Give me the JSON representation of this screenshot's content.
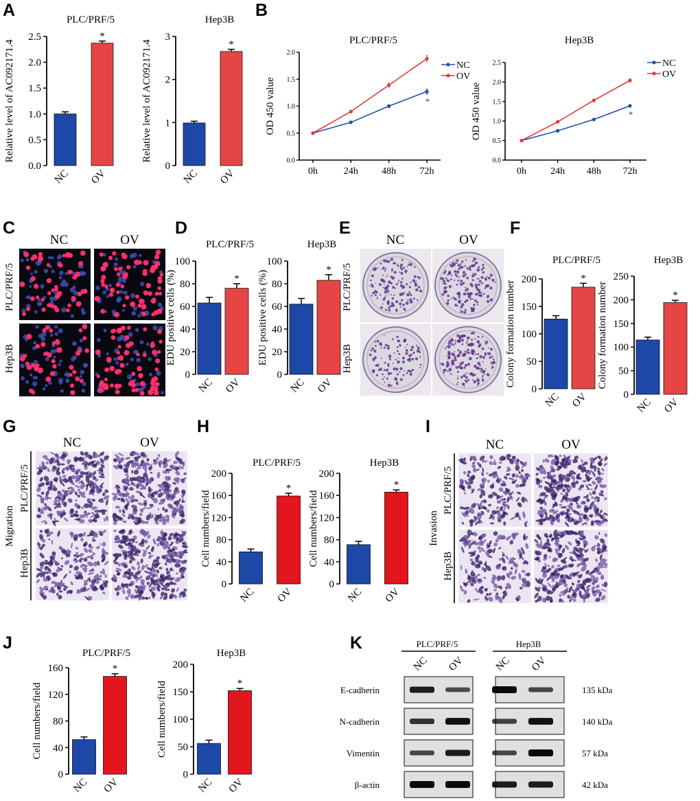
{
  "panels": [
    "A",
    "B",
    "C",
    "D",
    "E",
    "F",
    "G",
    "H",
    "I",
    "J",
    "K"
  ],
  "colors": {
    "nc": "#1d48a8",
    "ov_salmon": "#e64545",
    "ov_red": "#e3151d",
    "line_nc": "#2050a8",
    "line_ov": "#e23a3a",
    "micro_bg": "#080810",
    "transwell_bg": "#ece6f2",
    "plate_bg": "#dcd8e0"
  },
  "categories": [
    "NC",
    "OV"
  ],
  "cell_lines": [
    "PLC/PRF/5",
    "Hep3B"
  ],
  "microscopy": {
    "C": {
      "cols": [
        "NC",
        "OV"
      ],
      "rows": [
        "PLC/PRF/5",
        "Hep3B"
      ]
    },
    "E": {
      "cols": [
        "NC",
        "OV"
      ],
      "rows": [
        "PLC/PRF/5",
        "Hep3B"
      ]
    },
    "G": {
      "cols": [
        "NC",
        "OV"
      ],
      "rows": [
        "PLC/PRF/5",
        "Hep3B"
      ],
      "side": "Migration"
    },
    "I": {
      "cols": [
        "NC",
        "OV"
      ],
      "rows": [
        "PLC/PRF/5",
        "Hep3B"
      ],
      "side": "Invasion"
    }
  },
  "western": {
    "groups": [
      "PLC/PRF/5",
      "Hep3B"
    ],
    "lane_labels": [
      "NC",
      "OV",
      "NC",
      "OV"
    ],
    "rows": [
      {
        "protein": "E-cadherin",
        "size": "135 kDa",
        "intensity": [
          0.85,
          0.45,
          1.0,
          0.5
        ]
      },
      {
        "protein": "N-cadherin",
        "size": "140 kDa",
        "intensity": [
          0.65,
          0.95,
          0.55,
          0.95
        ]
      },
      {
        "protein": "Vimentin",
        "size": "57 kDa",
        "intensity": [
          0.5,
          0.85,
          0.5,
          1.0
        ]
      },
      {
        "protein": "β-actin",
        "size": "42 kDa",
        "intensity": [
          1.0,
          1.0,
          0.85,
          0.85
        ]
      }
    ]
  },
  "chart_data": [
    {
      "id": "A1",
      "type": "bar",
      "title": "PLC/PRF/5",
      "ylabel": "Relative level of AC092171.4",
      "categories": [
        "NC",
        "OV"
      ],
      "values": [
        1.0,
        2.37
      ],
      "errors": [
        0.04,
        0.04
      ],
      "ylim": [
        0,
        2.5
      ],
      "yticks": [
        "0.0",
        "0.5",
        "1.0",
        "1.5",
        "2.0",
        "2.5"
      ],
      "annotation": "*",
      "palette": [
        "nc",
        "ov_salmon"
      ]
    },
    {
      "id": "A2",
      "type": "bar",
      "title": "Hep3B",
      "ylabel": "Relative level of AC092171.4",
      "categories": [
        "NC",
        "OV"
      ],
      "values": [
        0.99,
        2.65
      ],
      "errors": [
        0.04,
        0.05
      ],
      "ylim": [
        0,
        3
      ],
      "yticks": [
        "0",
        "1",
        "2",
        "3"
      ],
      "annotation": "*",
      "palette": [
        "nc",
        "ov_salmon"
      ]
    },
    {
      "id": "B1",
      "type": "line",
      "title": "PLC/PRF/5",
      "ylabel": "OD 450 value",
      "x": [
        "0h",
        "24h",
        "48h",
        "72h"
      ],
      "ylim": [
        0,
        2.0
      ],
      "yticks": [
        "0.0",
        "0.5",
        "1.0",
        "1.5",
        "2.0"
      ],
      "annotation": "*",
      "legend": [
        "NC",
        "OV"
      ],
      "series": [
        {
          "name": "NC",
          "values": [
            0.5,
            0.7,
            1.0,
            1.27
          ],
          "errors": [
            0.02,
            0.02,
            0.04,
            0.06
          ]
        },
        {
          "name": "OV",
          "values": [
            0.5,
            0.9,
            1.39,
            1.88
          ],
          "errors": [
            0.02,
            0.02,
            0.05,
            0.07
          ]
        }
      ]
    },
    {
      "id": "B2",
      "type": "line",
      "title": "Hep3B",
      "ylabel": "OD 450 value",
      "x": [
        "0h",
        "24h",
        "48h",
        "72h"
      ],
      "ylim": [
        0,
        2.5
      ],
      "yticks": [
        "0.0",
        "0.5",
        "1.0",
        "1.5",
        "2.0",
        "2.5"
      ],
      "annotation": "*",
      "legend": [
        "NC",
        "OV"
      ],
      "series": [
        {
          "name": "NC",
          "values": [
            0.5,
            0.75,
            1.04,
            1.39
          ],
          "errors": [
            0.02,
            0.02,
            0.03,
            0.05
          ]
        },
        {
          "name": "OV",
          "values": [
            0.5,
            0.98,
            1.53,
            2.04
          ],
          "errors": [
            0.02,
            0.02,
            0.05,
            0.06
          ]
        }
      ]
    },
    {
      "id": "D1",
      "type": "bar",
      "title": "PLC/PRF/5",
      "ylabel": "EDU positive cells (%)",
      "categories": [
        "NC",
        "OV"
      ],
      "values": [
        63,
        76
      ],
      "errors": [
        5,
        4
      ],
      "ylim": [
        0,
        100
      ],
      "yticks": [
        "0",
        "20",
        "40",
        "60",
        "80",
        "100"
      ],
      "annotation": "*",
      "palette": [
        "nc",
        "ov_salmon"
      ]
    },
    {
      "id": "D2",
      "type": "bar",
      "title": "Hep3B",
      "ylabel": "EDU positive cells (%)",
      "categories": [
        "NC",
        "OV"
      ],
      "values": [
        62,
        83
      ],
      "errors": [
        5,
        5
      ],
      "ylim": [
        0,
        100
      ],
      "yticks": [
        "0",
        "20",
        "40",
        "60",
        "80",
        "100"
      ],
      "annotation": "*",
      "palette": [
        "nc",
        "ov_salmon"
      ]
    },
    {
      "id": "F1",
      "type": "bar",
      "title": "PLC/PRF/5",
      "ylabel": "Colony formation number",
      "categories": [
        "NC",
        "OV"
      ],
      "values": [
        127,
        185
      ],
      "errors": [
        6,
        7
      ],
      "ylim": [
        0,
        200
      ],
      "yticks": [
        "0",
        "50",
        "100",
        "150",
        "200"
      ],
      "annotation": "*",
      "palette": [
        "nc",
        "ov_salmon"
      ]
    },
    {
      "id": "F2",
      "type": "bar",
      "title": "Hep3B",
      "ylabel": "Colony formation number",
      "categories": [
        "NC",
        "OV"
      ],
      "values": [
        115,
        194
      ],
      "errors": [
        6,
        5
      ],
      "ylim": [
        0,
        250
      ],
      "yticks": [
        "0",
        "50",
        "100",
        "150",
        "200",
        "250"
      ],
      "annotation": "*",
      "palette": [
        "nc",
        "ov_salmon"
      ]
    },
    {
      "id": "H1",
      "type": "bar",
      "title": "PLC/PRF/5",
      "ylabel": "Cell numbers/field",
      "categories": [
        "NC",
        "OV"
      ],
      "values": [
        58,
        159
      ],
      "errors": [
        5,
        5
      ],
      "ylim": [
        0,
        200
      ],
      "yticks": [
        "0",
        "40",
        "80",
        "120",
        "160",
        "200"
      ],
      "annotation": "*",
      "palette": [
        "nc",
        "ov_red"
      ]
    },
    {
      "id": "H2",
      "type": "bar",
      "title": "Hep3B",
      "ylabel": "Cell numbers/field",
      "categories": [
        "NC",
        "OV"
      ],
      "values": [
        71,
        166
      ],
      "errors": [
        6,
        4
      ],
      "ylim": [
        0,
        200
      ],
      "yticks": [
        "0",
        "40",
        "80",
        "120",
        "160",
        "200"
      ],
      "annotation": "*",
      "palette": [
        "nc",
        "ov_red"
      ]
    },
    {
      "id": "J1",
      "type": "bar",
      "title": "PLC/PRF/5",
      "ylabel": "Cell numbers/field",
      "categories": [
        "NC",
        "OV"
      ],
      "values": [
        52,
        147
      ],
      "errors": [
        4,
        4
      ],
      "ylim": [
        0,
        160
      ],
      "yticks": [
        "0",
        "40",
        "80",
        "120",
        "160"
      ],
      "annotation": "*",
      "palette": [
        "nc",
        "ov_red"
      ]
    },
    {
      "id": "J2",
      "type": "bar",
      "title": "Hep3B",
      "ylabel": "Cell numbers/field",
      "categories": [
        "NC",
        "OV"
      ],
      "values": [
        56,
        152
      ],
      "errors": [
        6,
        4
      ],
      "ylim": [
        0,
        200
      ],
      "yticks": [
        "0",
        "50",
        "100",
        "150",
        "200"
      ],
      "annotation": "*",
      "palette": [
        "nc",
        "ov_red"
      ]
    }
  ]
}
